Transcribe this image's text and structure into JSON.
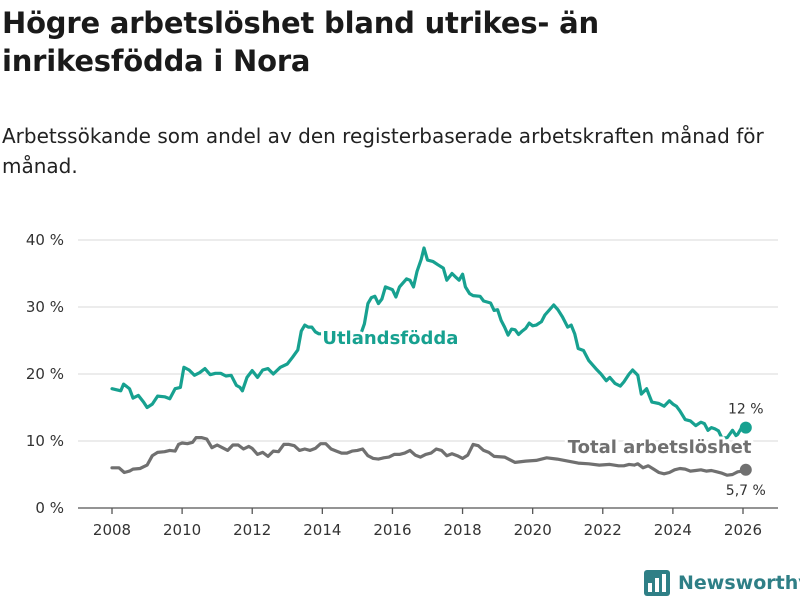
{
  "header": {
    "title": "Högre arbetslöshet bland utrikes- än inrikesfödda i Nora",
    "subtitle": "Arbetssökande som andel av den registerbaserade arbetskraften månad för månad."
  },
  "brand": {
    "name": "Newsworthy",
    "icon": "newsworthy-logo-icon"
  },
  "chart_data": {
    "type": "line",
    "title": "Högre arbetslöshet bland utrikes- än inrikesfödda i Nora",
    "subtitle": "Arbetssökande som andel av den registerbaserade arbetskraften månad för månad.",
    "xlabel": "",
    "ylabel": "",
    "x_ticks": [
      "2008",
      "2010",
      "2012",
      "2014",
      "2016",
      "2018",
      "2020",
      "2022",
      "2024",
      "2026"
    ],
    "x_tick_values": [
      2008,
      2010,
      2012,
      2014,
      2016,
      2018,
      2020,
      2022,
      2024,
      2026
    ],
    "y_ticks": [
      "0 %",
      "10 %",
      "20 %",
      "30 %",
      "40 %"
    ],
    "y_tick_values": [
      0,
      10,
      20,
      30,
      40
    ],
    "xlim": [
      2007.1,
      2027.0
    ],
    "ylim": [
      0,
      40
    ],
    "grid": true,
    "series": [
      {
        "name": "Utlandsfödda",
        "color": "#17a190",
        "end_label": "12 %",
        "points": [
          [
            2008.0,
            17.8
          ],
          [
            2008.25,
            17.5
          ],
          [
            2008.33,
            18.5
          ],
          [
            2008.5,
            17.8
          ],
          [
            2008.6,
            16.4
          ],
          [
            2008.75,
            16.8
          ],
          [
            2008.9,
            15.8
          ],
          [
            2009.0,
            15.0
          ],
          [
            2009.15,
            15.5
          ],
          [
            2009.3,
            16.7
          ],
          [
            2009.5,
            16.6
          ],
          [
            2009.65,
            16.3
          ],
          [
            2009.8,
            17.8
          ],
          [
            2009.95,
            18.0
          ],
          [
            2010.05,
            21.0
          ],
          [
            2010.2,
            20.6
          ],
          [
            2010.35,
            19.8
          ],
          [
            2010.5,
            20.2
          ],
          [
            2010.65,
            20.8
          ],
          [
            2010.8,
            19.9
          ],
          [
            2010.95,
            20.1
          ],
          [
            2011.1,
            20.1
          ],
          [
            2011.25,
            19.7
          ],
          [
            2011.4,
            19.8
          ],
          [
            2011.55,
            18.3
          ],
          [
            2011.65,
            18.0
          ],
          [
            2011.72,
            17.5
          ],
          [
            2011.85,
            19.5
          ],
          [
            2012.0,
            20.5
          ],
          [
            2012.15,
            19.5
          ],
          [
            2012.3,
            20.6
          ],
          [
            2012.45,
            20.8
          ],
          [
            2012.6,
            20.0
          ],
          [
            2012.8,
            21.0
          ],
          [
            2013.0,
            21.5
          ],
          [
            2013.15,
            22.5
          ],
          [
            2013.3,
            23.6
          ],
          [
            2013.4,
            26.4
          ],
          [
            2013.5,
            27.3
          ],
          [
            2013.6,
            27.0
          ],
          [
            2013.7,
            27.0
          ],
          [
            2013.8,
            26.3
          ],
          [
            2013.9,
            26.0
          ],
          [
            2015.1,
            26.0
          ],
          [
            2015.2,
            27.5
          ],
          [
            2015.3,
            30.5
          ],
          [
            2015.4,
            31.4
          ],
          [
            2015.5,
            31.6
          ],
          [
            2015.6,
            30.5
          ],
          [
            2015.7,
            31.2
          ],
          [
            2015.8,
            33.0
          ],
          [
            2016.0,
            32.6
          ],
          [
            2016.1,
            31.5
          ],
          [
            2016.2,
            33.0
          ],
          [
            2016.3,
            33.6
          ],
          [
            2016.4,
            34.2
          ],
          [
            2016.5,
            34.0
          ],
          [
            2016.6,
            33.0
          ],
          [
            2016.7,
            35.3
          ],
          [
            2016.82,
            37.1
          ],
          [
            2016.9,
            38.8
          ],
          [
            2017.0,
            37.0
          ],
          [
            2017.15,
            36.8
          ],
          [
            2017.3,
            36.3
          ],
          [
            2017.45,
            35.8
          ],
          [
            2017.55,
            34.0
          ],
          [
            2017.7,
            35.0
          ],
          [
            2017.8,
            34.5
          ],
          [
            2017.9,
            34.0
          ],
          [
            2018.0,
            34.9
          ],
          [
            2018.08,
            33.0
          ],
          [
            2018.2,
            32.0
          ],
          [
            2018.3,
            31.7
          ],
          [
            2018.5,
            31.6
          ],
          [
            2018.6,
            30.9
          ],
          [
            2018.8,
            30.6
          ],
          [
            2018.9,
            29.5
          ],
          [
            2019.0,
            29.6
          ],
          [
            2019.1,
            28.0
          ],
          [
            2019.2,
            27.0
          ],
          [
            2019.3,
            25.8
          ],
          [
            2019.4,
            26.7
          ],
          [
            2019.5,
            26.6
          ],
          [
            2019.6,
            25.9
          ],
          [
            2019.7,
            26.4
          ],
          [
            2019.8,
            26.8
          ],
          [
            2019.9,
            27.6
          ],
          [
            2020.0,
            27.2
          ],
          [
            2020.1,
            27.3
          ],
          [
            2020.25,
            27.8
          ],
          [
            2020.35,
            28.8
          ],
          [
            2020.5,
            29.7
          ],
          [
            2020.6,
            30.3
          ],
          [
            2020.72,
            29.6
          ],
          [
            2020.85,
            28.5
          ],
          [
            2021.0,
            27.0
          ],
          [
            2021.1,
            27.3
          ],
          [
            2021.2,
            26.0
          ],
          [
            2021.3,
            23.8
          ],
          [
            2021.45,
            23.5
          ],
          [
            2021.6,
            22.0
          ],
          [
            2021.8,
            20.8
          ],
          [
            2021.95,
            20.0
          ],
          [
            2022.1,
            19.0
          ],
          [
            2022.2,
            19.5
          ],
          [
            2022.35,
            18.6
          ],
          [
            2022.5,
            18.2
          ],
          [
            2022.6,
            18.8
          ],
          [
            2022.75,
            20.0
          ],
          [
            2022.85,
            20.6
          ],
          [
            2023.0,
            19.8
          ],
          [
            2023.1,
            17.0
          ],
          [
            2023.25,
            17.8
          ],
          [
            2023.4,
            15.8
          ],
          [
            2023.6,
            15.6
          ],
          [
            2023.75,
            15.2
          ],
          [
            2023.9,
            16.0
          ],
          [
            2024.0,
            15.5
          ],
          [
            2024.1,
            15.2
          ],
          [
            2024.2,
            14.5
          ],
          [
            2024.35,
            13.2
          ],
          [
            2024.5,
            13.0
          ],
          [
            2024.65,
            12.3
          ],
          [
            2024.8,
            12.8
          ],
          [
            2024.9,
            12.6
          ],
          [
            2025.0,
            11.6
          ],
          [
            2025.1,
            12.0
          ],
          [
            2025.2,
            11.8
          ],
          [
            2025.3,
            11.5
          ],
          [
            2025.4,
            10.4
          ],
          [
            2025.55,
            10.5
          ],
          [
            2025.7,
            11.6
          ],
          [
            2025.8,
            10.8
          ],
          [
            2025.85,
            11.0
          ],
          [
            2025.95,
            11.9
          ],
          [
            2026.0,
            11.6
          ],
          [
            2026.08,
            12.0
          ]
        ]
      },
      {
        "name": "Total arbetslöshet",
        "color": "#707070",
        "end_label": "5,7 %",
        "points": [
          [
            2008.0,
            6.0
          ],
          [
            2008.2,
            6.0
          ],
          [
            2008.35,
            5.3
          ],
          [
            2008.5,
            5.5
          ],
          [
            2008.6,
            5.8
          ],
          [
            2008.8,
            5.9
          ],
          [
            2009.0,
            6.4
          ],
          [
            2009.15,
            7.8
          ],
          [
            2009.3,
            8.3
          ],
          [
            2009.5,
            8.4
          ],
          [
            2009.65,
            8.6
          ],
          [
            2009.8,
            8.5
          ],
          [
            2009.9,
            9.5
          ],
          [
            2010.0,
            9.7
          ],
          [
            2010.15,
            9.6
          ],
          [
            2010.3,
            9.8
          ],
          [
            2010.4,
            10.5
          ],
          [
            2010.55,
            10.5
          ],
          [
            2010.7,
            10.3
          ],
          [
            2010.85,
            9.0
          ],
          [
            2011.0,
            9.4
          ],
          [
            2011.15,
            9.0
          ],
          [
            2011.3,
            8.6
          ],
          [
            2011.45,
            9.4
          ],
          [
            2011.6,
            9.4
          ],
          [
            2011.75,
            8.8
          ],
          [
            2011.9,
            9.2
          ],
          [
            2012.0,
            8.9
          ],
          [
            2012.15,
            8.0
          ],
          [
            2012.3,
            8.3
          ],
          [
            2012.45,
            7.7
          ],
          [
            2012.6,
            8.5
          ],
          [
            2012.75,
            8.4
          ],
          [
            2012.9,
            9.5
          ],
          [
            2013.05,
            9.5
          ],
          [
            2013.2,
            9.3
          ],
          [
            2013.35,
            8.6
          ],
          [
            2013.5,
            8.8
          ],
          [
            2013.65,
            8.6
          ],
          [
            2013.8,
            8.9
          ],
          [
            2013.95,
            9.6
          ],
          [
            2014.1,
            9.6
          ],
          [
            2014.25,
            8.8
          ],
          [
            2014.4,
            8.5
          ],
          [
            2014.55,
            8.2
          ],
          [
            2014.7,
            8.2
          ],
          [
            2014.85,
            8.5
          ],
          [
            2015.0,
            8.6
          ],
          [
            2015.15,
            8.8
          ],
          [
            2015.3,
            7.8
          ],
          [
            2015.45,
            7.4
          ],
          [
            2015.6,
            7.3
          ],
          [
            2015.75,
            7.5
          ],
          [
            2015.9,
            7.6
          ],
          [
            2016.05,
            8.0
          ],
          [
            2016.2,
            8.0
          ],
          [
            2016.35,
            8.2
          ],
          [
            2016.5,
            8.6
          ],
          [
            2016.65,
            7.9
          ],
          [
            2016.8,
            7.6
          ],
          [
            2016.95,
            8.0
          ],
          [
            2017.1,
            8.2
          ],
          [
            2017.25,
            8.8
          ],
          [
            2017.4,
            8.6
          ],
          [
            2017.55,
            7.8
          ],
          [
            2017.7,
            8.1
          ],
          [
            2017.85,
            7.8
          ],
          [
            2018.0,
            7.4
          ],
          [
            2018.15,
            7.9
          ],
          [
            2018.3,
            9.5
          ],
          [
            2018.45,
            9.3
          ],
          [
            2018.6,
            8.6
          ],
          [
            2018.75,
            8.3
          ],
          [
            2018.9,
            7.7
          ],
          [
            2019.2,
            7.6
          ],
          [
            2019.5,
            6.8
          ],
          [
            2019.8,
            7.0
          ],
          [
            2020.1,
            7.1
          ],
          [
            2020.4,
            7.5
          ],
          [
            2020.7,
            7.3
          ],
          [
            2021.0,
            7.0
          ],
          [
            2021.3,
            6.7
          ],
          [
            2021.6,
            6.6
          ],
          [
            2021.9,
            6.4
          ],
          [
            2022.2,
            6.5
          ],
          [
            2022.45,
            6.3
          ],
          [
            2022.6,
            6.3
          ],
          [
            2022.75,
            6.5
          ],
          [
            2022.9,
            6.4
          ],
          [
            2023.0,
            6.6
          ],
          [
            2023.15,
            6.0
          ],
          [
            2023.3,
            6.3
          ],
          [
            2023.45,
            5.8
          ],
          [
            2023.6,
            5.3
          ],
          [
            2023.75,
            5.1
          ],
          [
            2023.9,
            5.3
          ],
          [
            2024.05,
            5.7
          ],
          [
            2024.2,
            5.9
          ],
          [
            2024.35,
            5.8
          ],
          [
            2024.5,
            5.5
          ],
          [
            2024.65,
            5.6
          ],
          [
            2024.8,
            5.7
          ],
          [
            2024.95,
            5.5
          ],
          [
            2025.1,
            5.6
          ],
          [
            2025.25,
            5.4
          ],
          [
            2025.4,
            5.2
          ],
          [
            2025.55,
            4.9
          ],
          [
            2025.7,
            5.0
          ],
          [
            2025.85,
            5.4
          ],
          [
            2026.0,
            5.5
          ],
          [
            2026.08,
            5.7
          ]
        ]
      }
    ],
    "annotations": [
      {
        "text": "Utlandsfödda",
        "series": "Utlandsfödda",
        "x": 2014.0,
        "y": 24.5
      },
      {
        "text": "Total arbetslöshet",
        "series": "Total arbetslöshet",
        "x": 2021.0,
        "y": 8.2
      }
    ]
  }
}
